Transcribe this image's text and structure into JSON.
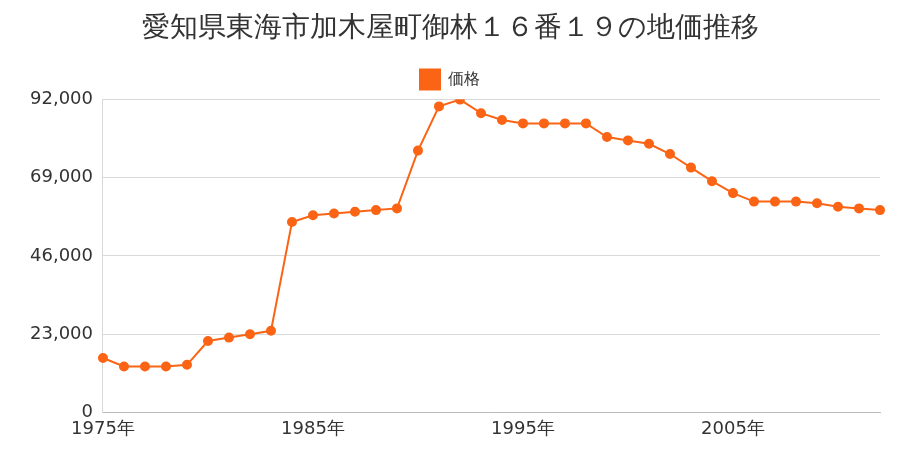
{
  "chart_data": {
    "type": "line",
    "title": "愛知県東海市加木屋町御林１６番１９の地価推移",
    "categories": [
      "1975年",
      null,
      null,
      null,
      null,
      null,
      null,
      null,
      null,
      null,
      "1985年",
      null,
      null,
      null,
      null,
      null,
      null,
      null,
      null,
      null,
      "1995年",
      null,
      null,
      null,
      null,
      null,
      null,
      null,
      null,
      null,
      "2005年",
      null,
      null,
      null,
      null,
      null,
      null,
      null
    ],
    "series": [
      {
        "name": "価格",
        "color": "#fa6414",
        "marker": "circle",
        "line_style": "solid",
        "values": [
          16000,
          13500,
          13500,
          13500,
          14000,
          21000,
          22000,
          23000,
          24000,
          56000,
          58000,
          58500,
          59000,
          59500,
          60000,
          77000,
          90000,
          92000,
          88000,
          86000,
          85000,
          85000,
          85000,
          85000,
          81000,
          80000,
          79000,
          76000,
          72000,
          68000,
          64500,
          62000,
          62000,
          62000,
          61500,
          60500,
          60000,
          59500
        ]
      }
    ],
    "ylim": [
      0,
      92000
    ],
    "yticks": [
      0,
      {
        "value": 23000,
        "label": "23,000"
      },
      {
        "value": 46000,
        "label": "46,000"
      },
      {
        "value": 69000,
        "label": "69,000"
      },
      {
        "value": 92000,
        "label": "92,000"
      }
    ],
    "grid": true,
    "legend": "top"
  }
}
